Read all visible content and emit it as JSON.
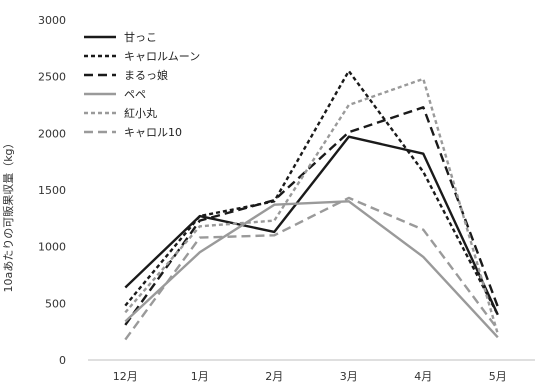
{
  "chart_data": {
    "type": "line",
    "title": "",
    "xlabel": "",
    "ylabel": "10aあたりの可販果収量（kg）",
    "categories": [
      "12月",
      "1月",
      "2月",
      "3月",
      "4月",
      "5月"
    ],
    "ylim": [
      0,
      3000
    ],
    "yticks": [
      0,
      500,
      1000,
      1500,
      2000,
      2500,
      3000
    ],
    "grid": false,
    "legend": "top-left",
    "series": [
      {
        "name": "甘っこ",
        "values": [
          640,
          1270,
          1130,
          1970,
          1820,
          400
        ],
        "color": "#1a1a1a",
        "style": "solid"
      },
      {
        "name": "キャロルムーン",
        "values": [
          480,
          1270,
          1400,
          2550,
          1660,
          400
        ],
        "color": "#1a1a1a",
        "style": "dotted"
      },
      {
        "name": "まるっ娘",
        "values": [
          310,
          1230,
          1410,
          2010,
          2230,
          470
        ],
        "color": "#1a1a1a",
        "style": "dashed"
      },
      {
        "name": "ペペ",
        "values": [
          340,
          950,
          1370,
          1400,
          910,
          200
        ],
        "color": "#9a9a9a",
        "style": "solid"
      },
      {
        "name": "紅小丸",
        "values": [
          420,
          1180,
          1230,
          2250,
          2480,
          230
        ],
        "color": "#9a9a9a",
        "style": "dotted"
      },
      {
        "name": "キャロル10",
        "values": [
          180,
          1080,
          1100,
          1430,
          1150,
          270
        ],
        "color": "#9a9a9a",
        "style": "dashed"
      }
    ]
  }
}
